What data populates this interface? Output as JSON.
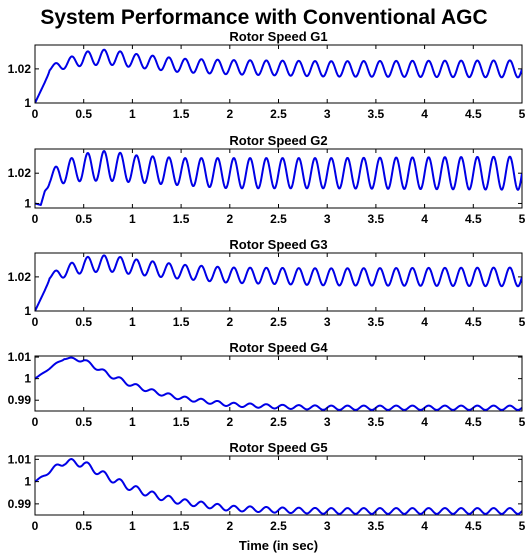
{
  "suptitle": "System Performance with Conventional AGC",
  "colors": {
    "line": "#0000e6"
  },
  "chart_data": [
    {
      "type": "line",
      "title": "Rotor Speed G1",
      "xlabel": "",
      "ylabel": "",
      "xlim": [
        0,
        5
      ],
      "ylim": [
        1.0,
        1.034
      ],
      "xticks": [
        0,
        0.5,
        1,
        1.5,
        2,
        2.5,
        3,
        3.5,
        4,
        4.5,
        5
      ],
      "xtick_labels": [
        "0",
        "0.5",
        "1",
        "1.5",
        "2",
        "2.5",
        "3",
        "3.5",
        "4",
        "4.5",
        "5"
      ],
      "yticks": [
        1.0,
        1.02
      ],
      "ytick_labels": [
        "1",
        "1.02"
      ],
      "grid": false,
      "series": [
        {
          "oscillation_frequency_hz": 6.0,
          "x": [
            0,
            0.1,
            0.15,
            0.25,
            0.5,
            0.75,
            1.0,
            1.5,
            2.0,
            3.0,
            5.0
          ],
          "mean": [
            1.0,
            1.012,
            1.02,
            1.022,
            1.026,
            1.027,
            1.025,
            1.022,
            1.021,
            1.02,
            1.02
          ],
          "amplitude": [
            0.0,
            0.0,
            0.0015,
            0.0025,
            0.004,
            0.0045,
            0.004,
            0.004,
            0.0042,
            0.0045,
            0.005
          ]
        }
      ]
    },
    {
      "type": "line",
      "title": "Rotor Speed G2",
      "xlabel": "",
      "ylabel": "",
      "xlim": [
        0,
        5
      ],
      "ylim": [
        0.997,
        1.036
      ],
      "xticks": [
        0,
        0.5,
        1,
        1.5,
        2,
        2.5,
        3,
        3.5,
        4,
        4.5,
        5
      ],
      "xtick_labels": [
        "0",
        "0.5",
        "1",
        "1.5",
        "2",
        "2.5",
        "3",
        "3.5",
        "4",
        "4.5",
        "5"
      ],
      "yticks": [
        1.0,
        1.02
      ],
      "ytick_labels": [
        "1",
        "1.02"
      ],
      "grid": false,
      "series": [
        {
          "oscillation_frequency_hz": 6.0,
          "x": [
            0,
            0.06,
            0.1,
            0.15,
            0.25,
            0.5,
            0.75,
            1.0,
            1.5,
            2.0,
            3.0,
            5.0
          ],
          "mean": [
            1.0,
            0.999,
            1.008,
            1.016,
            1.02,
            1.024,
            1.025,
            1.023,
            1.021,
            1.02,
            1.02,
            1.02
          ],
          "amplitude": [
            0.0,
            0.0,
            0.0,
            0.004,
            0.007,
            0.009,
            0.01,
            0.009,
            0.009,
            0.01,
            0.01,
            0.011
          ]
        }
      ]
    },
    {
      "type": "line",
      "title": "Rotor Speed G3",
      "xlabel": "",
      "ylabel": "",
      "xlim": [
        0,
        5
      ],
      "ylim": [
        1.0,
        1.034
      ],
      "xticks": [
        0,
        0.5,
        1,
        1.5,
        2,
        2.5,
        3,
        3.5,
        4,
        4.5,
        5
      ],
      "xtick_labels": [
        "0",
        "0.5",
        "1",
        "1.5",
        "2",
        "2.5",
        "3",
        "3.5",
        "4",
        "4.5",
        "5"
      ],
      "yticks": [
        1.0,
        1.02
      ],
      "ytick_labels": [
        "1",
        "1.02"
      ],
      "grid": false,
      "series": [
        {
          "oscillation_frequency_hz": 6.0,
          "x": [
            0,
            0.1,
            0.15,
            0.25,
            0.5,
            0.75,
            1.0,
            1.5,
            2.0,
            3.0,
            5.0
          ],
          "mean": [
            1.0,
            1.012,
            1.02,
            1.022,
            1.027,
            1.028,
            1.026,
            1.023,
            1.021,
            1.02,
            1.02
          ],
          "amplitude": [
            0.0,
            0.0,
            0.0015,
            0.003,
            0.0045,
            0.0048,
            0.0045,
            0.0042,
            0.0045,
            0.005,
            0.0055
          ]
        }
      ]
    },
    {
      "type": "line",
      "title": "Rotor Speed G4",
      "xlabel": "",
      "ylabel": "",
      "xlim": [
        0,
        5
      ],
      "ylim": [
        0.985,
        1.0105
      ],
      "xticks": [
        0,
        0.5,
        1,
        1.5,
        2,
        2.5,
        3,
        3.5,
        4,
        4.5,
        5
      ],
      "xtick_labels": [
        "0",
        "0.5",
        "1",
        "1.5",
        "2",
        "2.5",
        "3",
        "3.5",
        "4",
        "4.5",
        "5"
      ],
      "yticks": [
        0.99,
        1.0,
        1.01
      ],
      "ytick_labels": [
        "0.99",
        "1",
        "1.01"
      ],
      "grid": false,
      "series": [
        {
          "oscillation_frequency_hz": 6.0,
          "x": [
            0,
            0.3,
            0.5,
            0.75,
            1.0,
            1.25,
            1.5,
            2.0,
            2.5,
            3.0,
            4.0,
            5.0
          ],
          "mean": [
            1.0,
            1.0095,
            1.0085,
            1.002,
            0.997,
            0.9935,
            0.991,
            0.988,
            0.987,
            0.9865,
            0.9865,
            0.9865
          ],
          "amplitude": [
            0.0,
            0.0005,
            0.0008,
            0.001,
            0.001,
            0.0009,
            0.0009,
            0.0009,
            0.0009,
            0.001,
            0.001,
            0.001
          ]
        }
      ]
    },
    {
      "type": "line",
      "title": "Rotor Speed G5",
      "xlabel": "Time (in sec)",
      "ylabel": "",
      "xlim": [
        0,
        5
      ],
      "ylim": [
        0.985,
        1.0115
      ],
      "xticks": [
        0,
        0.5,
        1,
        1.5,
        2,
        2.5,
        3,
        3.5,
        4,
        4.5,
        5
      ],
      "xtick_labels": [
        "0",
        "0.5",
        "1",
        "1.5",
        "2",
        "2.5",
        "3",
        "3.5",
        "4",
        "4.5",
        "5"
      ],
      "yticks": [
        0.99,
        1.0,
        1.01
      ],
      "ytick_labels": [
        "0.99",
        "1",
        "1.01"
      ],
      "grid": false,
      "series": [
        {
          "oscillation_frequency_hz": 6.0,
          "x": [
            0,
            0.3,
            0.5,
            0.75,
            1.0,
            1.25,
            1.5,
            2.0,
            2.5,
            3.0,
            4.0,
            5.0
          ],
          "mean": [
            1.0,
            1.009,
            1.008,
            1.002,
            0.997,
            0.9935,
            0.991,
            0.988,
            0.9872,
            0.9868,
            0.9868,
            0.9868
          ],
          "amplitude": [
            0.0,
            0.0015,
            0.0015,
            0.0015,
            0.0015,
            0.0014,
            0.0013,
            0.0012,
            0.0012,
            0.0013,
            0.0013,
            0.0013
          ]
        }
      ]
    }
  ]
}
